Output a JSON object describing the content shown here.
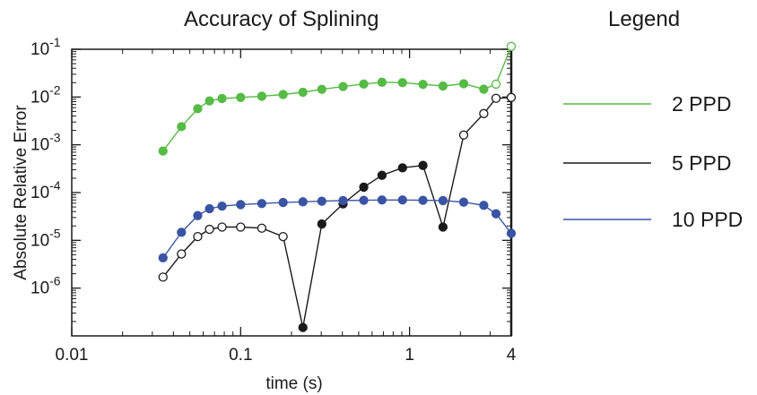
{
  "chart_data": {
    "type": "line",
    "title": "Accuracy of Splining",
    "legend_title": "Legend",
    "legend_position": "right",
    "xlabel": "time (s)",
    "ylabel": "Absolute Relative Error",
    "x_scale": "log",
    "y_scale": "log",
    "xlim": [
      0.01,
      4
    ],
    "ylim": [
      1e-07,
      0.1
    ],
    "x_ticks": [
      {
        "value": 0.01,
        "label": "0.01"
      },
      {
        "value": 0.1,
        "label": "0.1"
      },
      {
        "value": 1,
        "label": "1"
      },
      {
        "value": 4,
        "label": "4"
      }
    ],
    "y_ticks": [
      {
        "value": 1e-06,
        "base": "10",
        "exp": "-6"
      },
      {
        "value": 1e-05,
        "base": "10",
        "exp": "-5"
      },
      {
        "value": 0.0001,
        "base": "10",
        "exp": "-4"
      },
      {
        "value": 0.001,
        "base": "10",
        "exp": "-3"
      },
      {
        "value": 0.01,
        "base": "10",
        "exp": "-2"
      },
      {
        "value": 0.1,
        "base": "10",
        "exp": "-1"
      }
    ],
    "grid": false,
    "series": [
      {
        "name": "2 PPD",
        "color": "#55bb44",
        "x": [
          0.0347,
          0.0446,
          0.0557,
          0.0654,
          0.0776,
          0.1,
          0.1334,
          0.1784,
          0.2337,
          0.3024,
          0.404,
          0.5355,
          0.6866,
          0.9084,
          1.2006,
          1.5774,
          2.0918,
          2.75,
          3.25,
          4.0
        ],
        "y": [
          0.00074,
          0.0024,
          0.0057,
          0.0083,
          0.0093,
          0.0098,
          0.0104,
          0.0113,
          0.0126,
          0.0145,
          0.0166,
          0.0187,
          0.0204,
          0.02,
          0.0184,
          0.017,
          0.019,
          0.0146,
          0.0186,
          0.1148
        ],
        "filled": [
          true,
          true,
          true,
          true,
          true,
          true,
          true,
          true,
          true,
          true,
          true,
          true,
          true,
          true,
          true,
          true,
          true,
          true,
          false,
          false
        ]
      },
      {
        "name": "5 PPD",
        "color": "#1a1a1a",
        "x": [
          0.0347,
          0.0446,
          0.0557,
          0.0654,
          0.0776,
          0.1,
          0.1334,
          0.1784,
          0.2337,
          0.3024,
          0.404,
          0.5355,
          0.6866,
          0.9084,
          1.2006,
          1.5774,
          2.0918,
          2.75,
          3.25,
          4.0
        ],
        "y": [
          1.7e-06,
          5.2e-06,
          1.2e-05,
          1.7e-05,
          1.9e-05,
          1.9e-05,
          1.8e-05,
          1.2e-05,
          1.5e-07,
          2.2e-05,
          5.8e-05,
          0.00013,
          0.00023,
          0.00033,
          0.00037,
          1.9e-05,
          0.0016,
          0.0045,
          0.0094,
          0.0098
        ],
        "filled": [
          false,
          false,
          false,
          false,
          false,
          false,
          false,
          false,
          true,
          true,
          true,
          true,
          true,
          true,
          true,
          true,
          false,
          false,
          false,
          false
        ]
      },
      {
        "name": "10 PPD",
        "color": "#3a54a4",
        "x": [
          0.0347,
          0.0446,
          0.0557,
          0.0654,
          0.0776,
          0.1,
          0.1334,
          0.1784,
          0.2337,
          0.3024,
          0.404,
          0.5355,
          0.6866,
          0.9084,
          1.2006,
          1.5774,
          2.0918,
          2.75,
          3.25,
          4.0
        ],
        "y": [
          4.3e-06,
          1.47e-05,
          3.3e-05,
          4.6e-05,
          5.2e-05,
          5.6e-05,
          5.9e-05,
          6.2e-05,
          6.4e-05,
          6.6e-05,
          6.8e-05,
          6.9e-05,
          7e-05,
          7e-05,
          6.9e-05,
          6.8e-05,
          6.3e-05,
          5.4e-05,
          3.6e-05,
          1.4e-05
        ],
        "filled": [
          true,
          true,
          true,
          true,
          true,
          true,
          true,
          true,
          true,
          true,
          true,
          true,
          true,
          true,
          true,
          true,
          true,
          true,
          true,
          true
        ]
      }
    ]
  }
}
